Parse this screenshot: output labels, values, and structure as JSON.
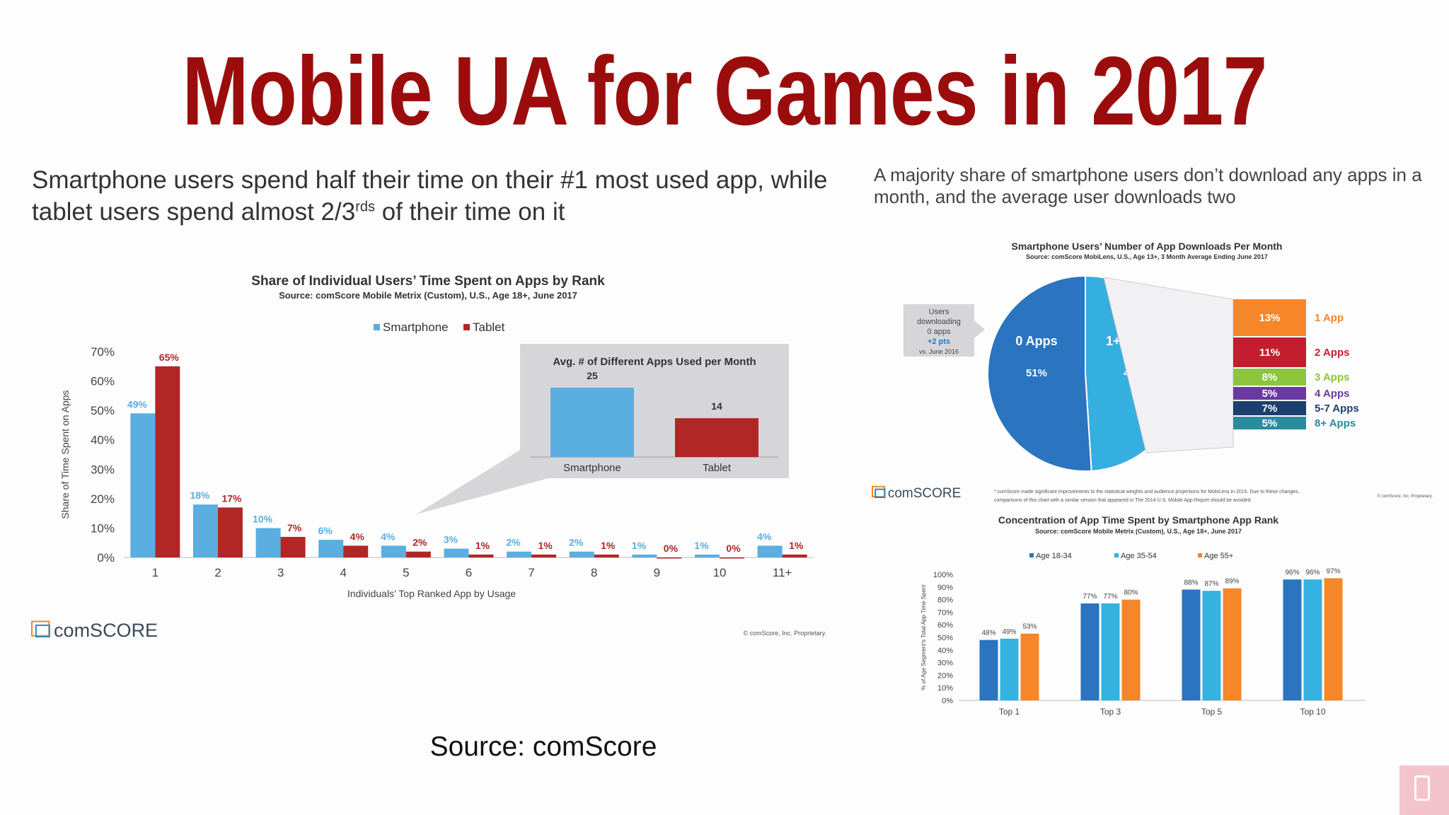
{
  "title": "Mobile UA for Games in 2017",
  "left_text": {
    "line1": "Smartphone users spend half their time on their #1 most used app, while",
    "line2_a": "tablet users spend almost 2/3",
    "line2_sup": "rds",
    "line2_b": " of their time on it"
  },
  "right_text": {
    "line1": "A majority share of smartphone users don’t download any apps in a",
    "line2": "month, and the average user downloads two"
  },
  "source_caption": "Source: comScore",
  "comscore_logo": "comSCORE",
  "colors": {
    "title": "#9b0d0d",
    "smartphone": "#5aaee0",
    "tablet": "#b22626",
    "age1834": "#2a74c0",
    "age3554": "#35b2e0",
    "age55": "#f5862a"
  },
  "chart_data": [
    {
      "type": "bar",
      "title": "Share of Individual Users’ Time Spent on Apps by Rank",
      "subtitle": "Source: comScore Mobile Metrix (Custom), U.S., Age 18+, June 2017",
      "xlabel": "Individuals’ Top Ranked App by Usage",
      "ylabel": "Share of Time Spent on Apps",
      "categories": [
        "1",
        "2",
        "3",
        "4",
        "5",
        "6",
        "7",
        "8",
        "9",
        "10",
        "11+"
      ],
      "yticks": [
        "0%",
        "10%",
        "20%",
        "30%",
        "40%",
        "50%",
        "60%",
        "70%"
      ],
      "ylim": [
        0,
        70
      ],
      "series": [
        {
          "name": "Smartphone",
          "values": [
            49,
            18,
            10,
            6,
            4,
            3,
            2,
            2,
            1,
            1,
            4
          ],
          "labels": [
            "49%",
            "18%",
            "10%",
            "6%",
            "4%",
            "3%",
            "2%",
            "2%",
            "1%",
            "1%",
            "4%"
          ]
        },
        {
          "name": "Tablet",
          "values": [
            65,
            17,
            7,
            4,
            2,
            1,
            1,
            1,
            0,
            0,
            1
          ],
          "labels": [
            "65%",
            "17%",
            "7%",
            "4%",
            "2%",
            "1%",
            "1%",
            "1%",
            "0%",
            "0%",
            "1%"
          ]
        }
      ],
      "legend": "top",
      "footnote": "© comScore, Inc. Proprietary.",
      "inset": {
        "type": "bar",
        "title": "Avg. # of Different Apps Used per Month",
        "categories": [
          "Smartphone",
          "Tablet"
        ],
        "values": [
          25,
          14
        ],
        "labels": [
          "25",
          "14"
        ]
      }
    },
    {
      "type": "pie",
      "title": "Smartphone Users’ Number of App Downloads Per Month",
      "subtitle": "Source: comScore MobiLens, U.S., Age 13+, 3 Month Average Ending June 2017",
      "slices": [
        {
          "label": "0 Apps",
          "value": 51,
          "text": "51%"
        },
        {
          "label": "1+ Apps",
          "value": 49,
          "text": "49%"
        }
      ],
      "callout": [
        "Users",
        "downloading",
        "0 apps",
        "+2 pts",
        "vs. June 2016"
      ],
      "breakdown": [
        {
          "label": "1 App",
          "value": 13,
          "text": "13%",
          "color": "#f5862a"
        },
        {
          "label": "2 Apps",
          "value": 11,
          "text": "11%",
          "color": "#c41e2e"
        },
        {
          "label": "3 Apps",
          "value": 8,
          "text": "8%",
          "color": "#8cc63f"
        },
        {
          "label": "4 Apps",
          "value": 5,
          "text": "5%",
          "color": "#6a3aa0"
        },
        {
          "label": "5-7 Apps",
          "value": 7,
          "text": "7%",
          "color": "#1d3f6e"
        },
        {
          "label": "8+ Apps",
          "value": 5,
          "text": "5%",
          "color": "#2a8a9e"
        }
      ],
      "footnote": "* comScore made significant improvements to the statistical weights and audience projections for MobiLens in 2015. Due to these changes, comparisons of this chart with a similar version that appeared in The 2014 U.S. Mobile App Report should be avoided.",
      "copyright": "© comScore, Inc. Proprietary."
    },
    {
      "type": "bar",
      "title": "Concentration of App Time Spent by Smartphone App Rank",
      "subtitle": "Source: comScore Mobile Metrix (Custom), U.S., Age 18+, June 2017",
      "ylabel": "% of Age Segment's Total App Time Spent",
      "categories": [
        "Top 1",
        "Top 3",
        "Top 5",
        "Top 10"
      ],
      "yticks": [
        "0%",
        "10%",
        "20%",
        "30%",
        "40%",
        "50%",
        "60%",
        "70%",
        "80%",
        "90%",
        "100%"
      ],
      "ylim": [
        0,
        100
      ],
      "series": [
        {
          "name": "Age 18-34",
          "values": [
            48,
            77,
            88,
            96
          ],
          "labels": [
            "48%",
            "77%",
            "88%",
            "96%"
          ]
        },
        {
          "name": "Age 35-54",
          "values": [
            49,
            77,
            87,
            96
          ],
          "labels": [
            "49%",
            "77%",
            "87%",
            "96%"
          ]
        },
        {
          "name": "Age 55+",
          "values": [
            53,
            80,
            89,
            97
          ],
          "labels": [
            "53%",
            "80%",
            "89%",
            "97%"
          ]
        }
      ],
      "legend": "top"
    }
  ]
}
